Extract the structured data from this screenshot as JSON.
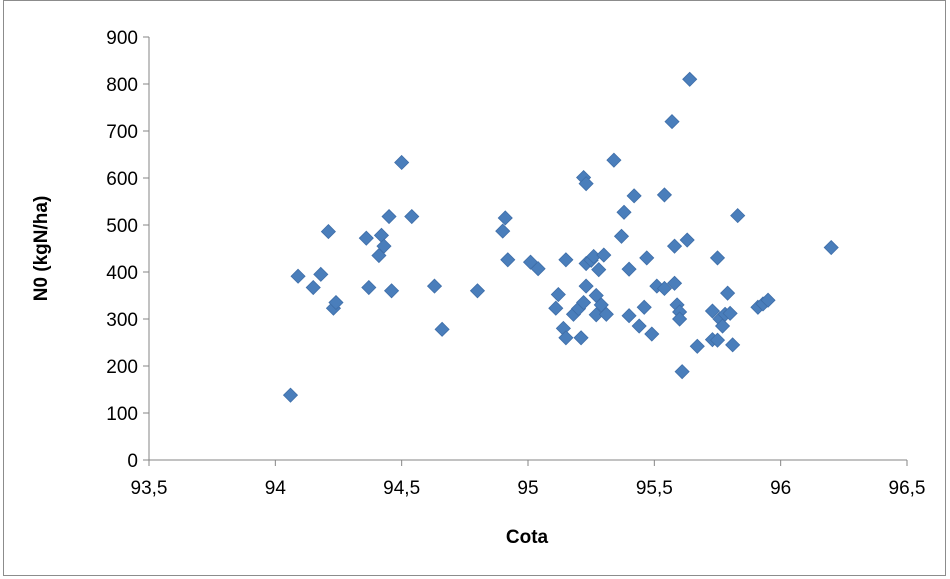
{
  "chart_data": {
    "type": "scatter",
    "xlabel": "Cota",
    "ylabel": "N0 (kgN/ha)",
    "xlim": [
      93.5,
      96.5
    ],
    "ylim": [
      0,
      900
    ],
    "x_ticks": [
      93.5,
      94,
      94.5,
      95,
      95.5,
      96,
      96.5
    ],
    "x_tick_labels": [
      "93,5",
      "94",
      "94,5",
      "95",
      "95,5",
      "96",
      "96,5"
    ],
    "y_ticks": [
      0,
      100,
      200,
      300,
      400,
      500,
      600,
      700,
      800,
      900
    ],
    "y_tick_labels": [
      "0",
      "100",
      "200",
      "300",
      "400",
      "500",
      "600",
      "700",
      "800",
      "900"
    ],
    "grid": false,
    "legend": "none",
    "marker": "diamond",
    "marker_color": "#4a7ebb",
    "series": [
      {
        "points": [
          [
            94.06,
            138
          ],
          [
            94.09,
            391
          ],
          [
            94.15,
            367
          ],
          [
            94.18,
            395
          ],
          [
            94.21,
            486
          ],
          [
            94.23,
            323
          ],
          [
            94.24,
            335
          ],
          [
            94.36,
            472
          ],
          [
            94.37,
            367
          ],
          [
            94.41,
            435
          ],
          [
            94.42,
            478
          ],
          [
            94.43,
            455
          ],
          [
            94.45,
            518
          ],
          [
            94.46,
            360
          ],
          [
            94.5,
            633
          ],
          [
            94.54,
            518
          ],
          [
            94.63,
            370
          ],
          [
            94.66,
            278
          ],
          [
            94.8,
            360
          ],
          [
            94.9,
            487
          ],
          [
            94.91,
            515
          ],
          [
            94.92,
            426
          ],
          [
            95.01,
            421
          ],
          [
            95.04,
            407
          ],
          [
            95.11,
            323
          ],
          [
            95.12,
            352
          ],
          [
            95.14,
            280
          ],
          [
            95.15,
            260
          ],
          [
            95.15,
            426
          ],
          [
            95.18,
            310
          ],
          [
            95.2,
            322
          ],
          [
            95.21,
            260
          ],
          [
            95.22,
            335
          ],
          [
            95.22,
            601
          ],
          [
            95.23,
            588
          ],
          [
            95.23,
            370
          ],
          [
            95.23,
            418
          ],
          [
            95.25,
            425
          ],
          [
            95.26,
            433
          ],
          [
            95.27,
            350
          ],
          [
            95.27,
            309
          ],
          [
            95.28,
            405
          ],
          [
            95.29,
            330
          ],
          [
            95.3,
            436
          ],
          [
            95.31,
            310
          ],
          [
            95.34,
            638
          ],
          [
            95.37,
            476
          ],
          [
            95.38,
            527
          ],
          [
            95.4,
            307
          ],
          [
            95.4,
            406
          ],
          [
            95.42,
            562
          ],
          [
            95.44,
            285
          ],
          [
            95.46,
            325
          ],
          [
            95.47,
            430
          ],
          [
            95.49,
            268
          ],
          [
            95.51,
            370
          ],
          [
            95.54,
            564
          ],
          [
            95.54,
            365
          ],
          [
            95.57,
            720
          ],
          [
            95.58,
            455
          ],
          [
            95.58,
            376
          ],
          [
            95.59,
            330
          ],
          [
            95.6,
            315
          ],
          [
            95.6,
            300
          ],
          [
            95.61,
            188
          ],
          [
            95.63,
            468
          ],
          [
            95.64,
            810
          ],
          [
            95.67,
            242
          ],
          [
            95.73,
            317
          ],
          [
            95.73,
            256
          ],
          [
            95.75,
            430
          ],
          [
            95.75,
            255
          ],
          [
            95.76,
            300
          ],
          [
            95.77,
            285
          ],
          [
            95.78,
            310
          ],
          [
            95.79,
            355
          ],
          [
            95.8,
            312
          ],
          [
            95.81,
            245
          ],
          [
            95.83,
            520
          ],
          [
            95.91,
            325
          ],
          [
            95.93,
            332
          ],
          [
            95.95,
            340
          ],
          [
            96.2,
            452
          ]
        ]
      }
    ]
  }
}
